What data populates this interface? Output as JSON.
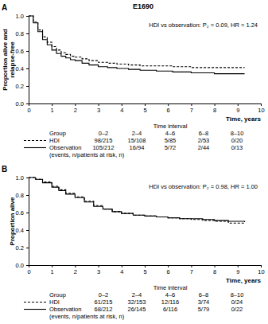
{
  "title": "E1690",
  "chart_data": [
    {
      "type": "step",
      "title": "A",
      "annotation": "HDI vs observation: P₂ = 0.09, HR = 1.24",
      "xlabel": "Time, years",
      "ylabel": [
        "Proportion alive and",
        "relapse-free"
      ],
      "xlim": [
        0,
        10
      ],
      "xticks": [
        0,
        1,
        2,
        3,
        4,
        5,
        6,
        7,
        8,
        9,
        10
      ],
      "ylim": [
        0,
        1
      ],
      "yticks": [
        {
          "value": 0,
          "label": "0.0"
        },
        {
          "value": 0.2,
          "label": "0.2"
        },
        {
          "value": 0.4,
          "label": "0.4"
        },
        {
          "value": 0.6,
          "label": "0.6"
        },
        {
          "value": 0.8,
          "label": "0.8"
        },
        {
          "value": 1,
          "label": "1.0"
        }
      ],
      "x": [
        0,
        0.2,
        0.4,
        0.6,
        0.8,
        1.0,
        1.2,
        1.4,
        1.6,
        1.8,
        2.0,
        2.3,
        2.6,
        3.0,
        3.4,
        3.8,
        4.3,
        4.8,
        5.5,
        6.2,
        7.0,
        8.0,
        9.3
      ],
      "series": [
        {
          "name": "HDI",
          "color": "#000000",
          "line_style": "dashed",
          "values": [
            1.0,
            0.93,
            0.84,
            0.76,
            0.7,
            0.65,
            0.61,
            0.58,
            0.56,
            0.54,
            0.53,
            0.51,
            0.49,
            0.47,
            0.46,
            0.45,
            0.44,
            0.43,
            0.43,
            0.42,
            0.41,
            0.41,
            0.41
          ]
        },
        {
          "name": "Observation",
          "color": "#000000",
          "line_style": "solid",
          "values": [
            1.0,
            0.92,
            0.82,
            0.73,
            0.67,
            0.61,
            0.57,
            0.54,
            0.52,
            0.5,
            0.49,
            0.46,
            0.44,
            0.42,
            0.41,
            0.4,
            0.39,
            0.38,
            0.37,
            0.36,
            0.35,
            0.34,
            0.34
          ]
        }
      ],
      "risk_table": {
        "group_label": "Group",
        "title": "Time interval",
        "columns": [
          "0–2",
          "2–4",
          "4–6",
          "6–8",
          "8–10"
        ],
        "rows": [
          [
            "98/215",
            "15/108",
            "5/85",
            "2/53",
            "0/20"
          ],
          [
            "105/212",
            "16/94",
            "5/72",
            "2/44",
            "0/13"
          ]
        ],
        "note": "(events, n/patients at risk, n)"
      }
    },
    {
      "type": "step",
      "title": "B",
      "annotation": "HDI vs observation: P₂ = 0.98, HR = 1.00",
      "xlabel": "Time, years",
      "ylabel": [
        "Proportion alive"
      ],
      "xlim": [
        0,
        10
      ],
      "xticks": [
        0,
        1,
        2,
        3,
        4,
        5,
        6,
        7,
        8,
        9,
        10
      ],
      "ylim": [
        0,
        1
      ],
      "yticks": [
        {
          "value": 0,
          "label": "0.0"
        },
        {
          "value": 0.2,
          "label": "0.2"
        },
        {
          "value": 0.4,
          "label": "0.4"
        },
        {
          "value": 0.6,
          "label": "0.6"
        },
        {
          "value": 0.8,
          "label": "0.8"
        },
        {
          "value": 1,
          "label": "1.0"
        }
      ],
      "x": [
        0,
        0.3,
        0.6,
        1.0,
        1.3,
        1.6,
        2.0,
        2.4,
        2.8,
        3.2,
        3.6,
        4.0,
        4.5,
        5.0,
        5.5,
        6.0,
        6.5,
        7.0,
        7.5,
        8.0,
        8.6,
        9.3
      ],
      "series": [
        {
          "name": "HDI",
          "color": "#000000",
          "line_style": "dashed",
          "values": [
            1.0,
            0.98,
            0.95,
            0.9,
            0.86,
            0.82,
            0.78,
            0.73,
            0.68,
            0.64,
            0.61,
            0.59,
            0.57,
            0.56,
            0.55,
            0.54,
            0.53,
            0.52,
            0.51,
            0.5,
            0.48,
            0.47
          ]
        },
        {
          "name": "Observation",
          "color": "#000000",
          "line_style": "solid",
          "values": [
            1.0,
            0.98,
            0.94,
            0.89,
            0.85,
            0.81,
            0.77,
            0.72,
            0.67,
            0.64,
            0.61,
            0.59,
            0.57,
            0.56,
            0.55,
            0.54,
            0.53,
            0.53,
            0.52,
            0.51,
            0.5,
            0.49
          ]
        }
      ],
      "risk_table": {
        "group_label": "Group",
        "title": "Time interval",
        "columns": [
          "0–2",
          "2–4",
          "4–6",
          "6–8",
          "8–10"
        ],
        "rows": [
          [
            "61/215",
            "32/153",
            "12/116",
            "3/74",
            "0/24"
          ],
          [
            "68/212",
            "26/145",
            "6/116",
            "5/79",
            "0/22"
          ]
        ],
        "note": "(events, n/patients at risk, n)"
      }
    }
  ]
}
